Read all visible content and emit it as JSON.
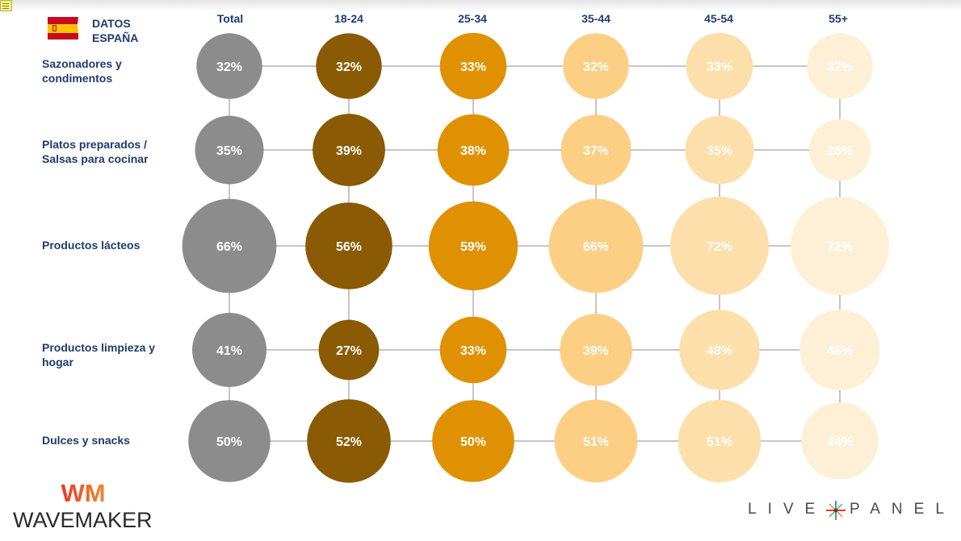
{
  "header": {
    "title_line1": "DATOS",
    "title_line2": "ESPAÑA",
    "flag_icon": "spain-flag-icon"
  },
  "chart_data": {
    "type": "bubble",
    "title": "",
    "columns": [
      "Total",
      "18-24",
      "25-34",
      "35-44",
      "45-54",
      "55+"
    ],
    "rows": [
      "Sazonadores y condimentos",
      "Platos preparados / Salsas para cocinar",
      "Productos lácteos",
      "Productos limpieza y hogar",
      "Dulces y snacks"
    ],
    "values": [
      [
        32,
        32,
        33,
        32,
        33,
        32
      ],
      [
        35,
        39,
        38,
        37,
        35,
        28
      ],
      [
        66,
        56,
        59,
        66,
        72,
        72
      ],
      [
        41,
        27,
        33,
        39,
        48,
        48
      ],
      [
        50,
        52,
        50,
        51,
        51,
        44
      ]
    ],
    "value_suffix": "%",
    "series_colors": [
      "#8c8c8c",
      "#8a5a04",
      "#df9102",
      "#fdcf85",
      "#fddfab",
      "#fef0d6"
    ],
    "grid_line_color": "#c6c6c6",
    "label_color": "#ffffff"
  },
  "logos": {
    "wavemaker_mark": "WM",
    "wavemaker_name": "WAVEMAKER",
    "livepanel_left": "LIVE",
    "livepanel_right": "PANEL"
  }
}
